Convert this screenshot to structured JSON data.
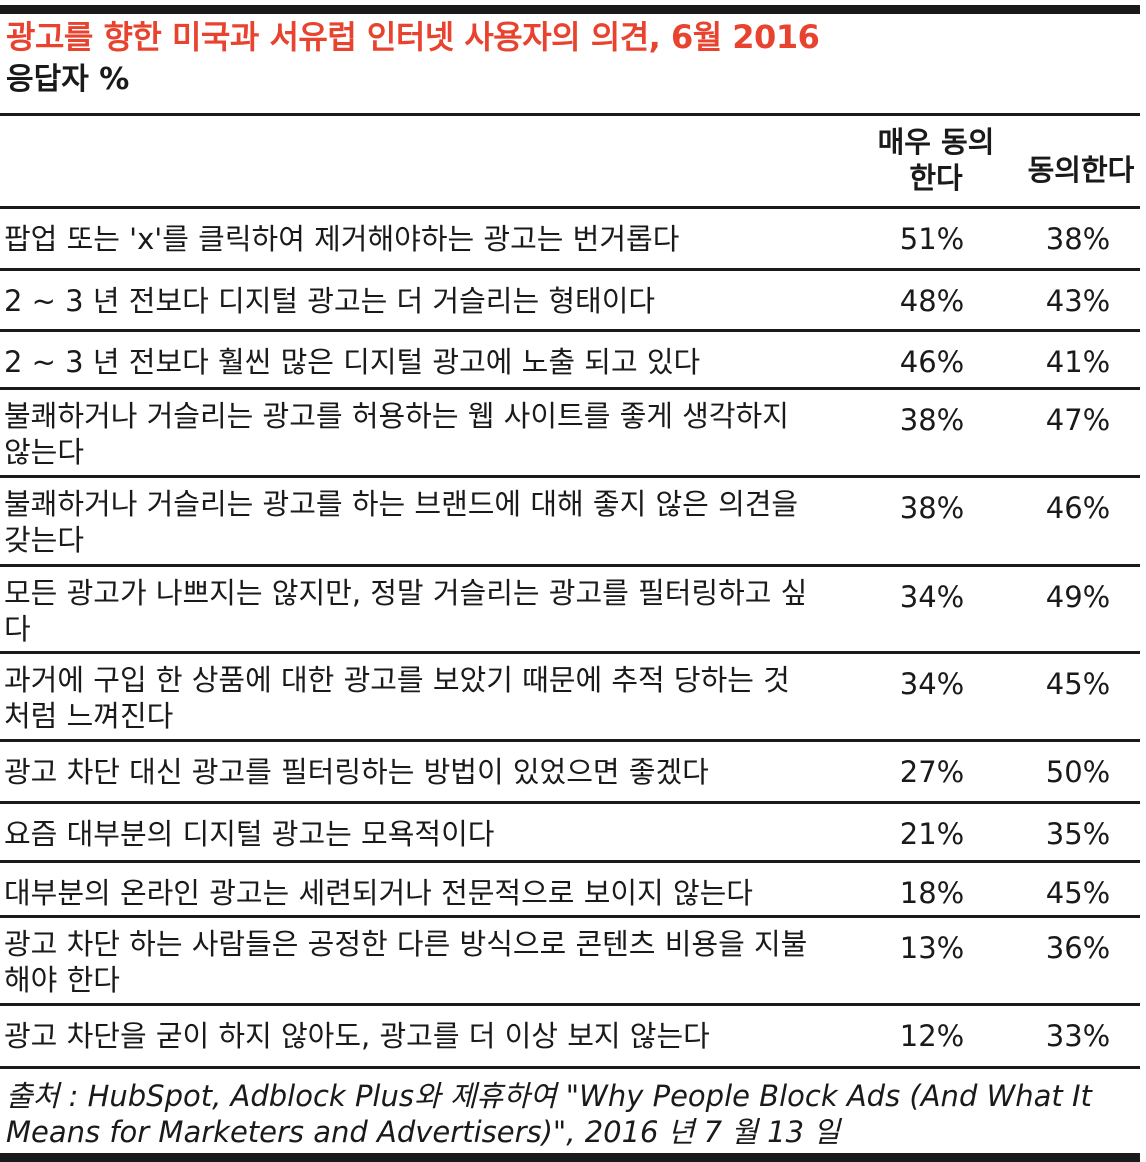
{
  "header": {
    "title": "광고를 향한 미국과 서유럽 인터넷 사용자의 의견, 6월 2016",
    "subtitle": "응답자 %",
    "col_strongly_agree": "매우 동의한다",
    "col_agree": "동의한다"
  },
  "footer": {
    "source": "출처 : HubSpot, Adblock Plus와 제휴하여 \"Why People Block Ads (And What It Means for Marketers and Advertisers)\", 2016 년 7 월 13 일"
  },
  "colors": {
    "title": "#e8432f",
    "rule": "#1a1a1a"
  },
  "chart_data": {
    "type": "table",
    "title": "광고를 향한 미국과 서유럽 인터넷 사용자의 의견, 6월 2016",
    "subtitle": "응답자 %",
    "columns": [
      "매우 동의한다",
      "동의한다"
    ],
    "rows": [
      {
        "label": "팝업 또는 'x'를 클릭하여 제거해야하는 광고는 번거롭다",
        "strongly_agree": "51%",
        "agree": "38%"
      },
      {
        "label": "2 ~ 3 년 전보다 디지털 광고는 더 거슬리는 형태이다",
        "strongly_agree": "48%",
        "agree": "43%"
      },
      {
        "label": "2 ~ 3 년 전보다 훨씬 많은 디지털 광고에 노출 되고 있다",
        "strongly_agree": "46%",
        "agree": "41%"
      },
      {
        "label": "불쾌하거나 거슬리는 광고를 허용하는 웹 사이트를 좋게 생각하지 않는다",
        "strongly_agree": "38%",
        "agree": "47%"
      },
      {
        "label": "불쾌하거나 거슬리는 광고를 하는 브랜드에 대해 좋지 않은 의견을 갖는다",
        "strongly_agree": "38%",
        "agree": "46%"
      },
      {
        "label": "모든 광고가 나쁘지는 않지만, 정말 거슬리는 광고를 필터링하고 싶다",
        "strongly_agree": "34%",
        "agree": "49%"
      },
      {
        "label": "과거에 구입 한 상품에 대한 광고를 보았기 때문에 추적 당하는 것처럼 느껴진다",
        "strongly_agree": "34%",
        "agree": "45%"
      },
      {
        "label": "광고 차단 대신 광고를 필터링하는 방법이 있었으면 좋겠다",
        "strongly_agree": "27%",
        "agree": "50%"
      },
      {
        "label": "요즘 대부분의 디지털 광고는 모욕적이다",
        "strongly_agree": "21%",
        "agree": "35%"
      },
      {
        "label": "대부분의 온라인 광고는 세련되거나 전문적으로 보이지 않는다",
        "strongly_agree": "18%",
        "agree": "45%"
      },
      {
        "label": "광고 차단 하는 사람들은 공정한 다른 방식으로 콘텐츠 비용을 지불해야 한다",
        "strongly_agree": "13%",
        "agree": "36%"
      },
      {
        "label": "광고 차단을 굳이 하지 않아도, 광고를 더 이상 보지 않는다",
        "strongly_agree": "12%",
        "agree": "33%"
      }
    ]
  }
}
